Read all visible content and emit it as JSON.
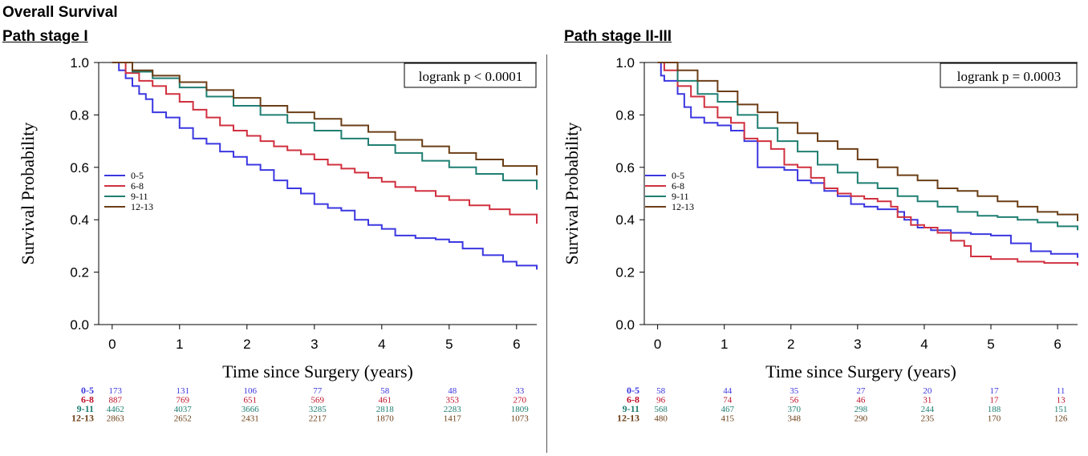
{
  "headers": {
    "main_title": "Overall Survival",
    "left_subtitle": "Path stage I",
    "right_subtitle": "Path stage II-III"
  },
  "chart_data": [
    {
      "type": "line",
      "title": "Path stage I",
      "xlabel": "Time since Surgery (years)",
      "ylabel": "Survival Probability",
      "xlim": [
        -0.2,
        6.3
      ],
      "ylim": [
        0.0,
        1.0
      ],
      "xticks": [
        "0",
        "1",
        "2",
        "3",
        "4",
        "5",
        "6"
      ],
      "yticks": [
        "0.0",
        "0.2",
        "0.4",
        "0.6",
        "0.8",
        "1.0"
      ],
      "annotation": "logrank p < 0.0001",
      "legend_position": "middle-left",
      "series": [
        {
          "name": "0-5",
          "color": "#3b37e0",
          "x": [
            0,
            0.1,
            0.2,
            0.3,
            0.4,
            0.5,
            0.6,
            0.8,
            1,
            1.2,
            1.4,
            1.6,
            1.8,
            2,
            2.2,
            2.4,
            2.6,
            2.8,
            3,
            3.2,
            3.4,
            3.6,
            3.8,
            4,
            4.2,
            4.5,
            4.8,
            5,
            5.2,
            5.5,
            5.8,
            6,
            6.3
          ],
          "y": [
            1,
            0.97,
            0.94,
            0.91,
            0.88,
            0.86,
            0.81,
            0.79,
            0.75,
            0.71,
            0.69,
            0.66,
            0.64,
            0.61,
            0.59,
            0.55,
            0.52,
            0.5,
            0.46,
            0.445,
            0.435,
            0.4,
            0.38,
            0.365,
            0.34,
            0.33,
            0.325,
            0.315,
            0.29,
            0.265,
            0.24,
            0.225,
            0.21
          ]
        },
        {
          "name": "6-8",
          "color": "#d0303f",
          "x": [
            0,
            0.2,
            0.4,
            0.6,
            0.8,
            1,
            1.2,
            1.4,
            1.6,
            1.8,
            2,
            2.2,
            2.4,
            2.6,
            2.8,
            3,
            3.2,
            3.4,
            3.6,
            3.8,
            4,
            4.2,
            4.5,
            4.8,
            5,
            5.3,
            5.6,
            5.9,
            6.3
          ],
          "y": [
            1,
            0.96,
            0.93,
            0.91,
            0.88,
            0.85,
            0.82,
            0.79,
            0.76,
            0.74,
            0.72,
            0.7,
            0.68,
            0.665,
            0.65,
            0.63,
            0.61,
            0.595,
            0.58,
            0.56,
            0.545,
            0.525,
            0.51,
            0.49,
            0.475,
            0.455,
            0.44,
            0.42,
            0.385
          ]
        },
        {
          "name": "9-11",
          "color": "#1f7f72",
          "x": [
            0,
            0.3,
            0.6,
            1,
            1.4,
            1.8,
            2.2,
            2.6,
            3,
            3.4,
            3.8,
            4.2,
            4.6,
            5,
            5.4,
            5.8,
            6.3
          ],
          "y": [
            1,
            0.965,
            0.94,
            0.905,
            0.87,
            0.835,
            0.8,
            0.77,
            0.74,
            0.71,
            0.685,
            0.655,
            0.625,
            0.6,
            0.575,
            0.55,
            0.515
          ]
        },
        {
          "name": "12-13",
          "color": "#6b3e16",
          "x": [
            0,
            0.3,
            0.6,
            1,
            1.4,
            1.8,
            2.2,
            2.6,
            3,
            3.4,
            3.8,
            4.2,
            4.6,
            5,
            5.4,
            5.8,
            6.3
          ],
          "y": [
            1,
            0.97,
            0.95,
            0.925,
            0.895,
            0.865,
            0.835,
            0.81,
            0.785,
            0.76,
            0.735,
            0.705,
            0.68,
            0.655,
            0.63,
            0.605,
            0.57
          ]
        }
      ],
      "risk_table": {
        "rows": [
          {
            "label": "0-5",
            "color": "#3b37e0",
            "values": [
              "173",
              "131",
              "106",
              "77",
              "58",
              "48",
              "33"
            ]
          },
          {
            "label": "6-8",
            "color": "#c0102a",
            "values": [
              "887",
              "769",
              "651",
              "569",
              "461",
              "353",
              "270"
            ]
          },
          {
            "label": "9-11",
            "color": "#1f7f72",
            "values": [
              "4462",
              "4037",
              "3666",
              "3285",
              "2818",
              "2283",
              "1809"
            ]
          },
          {
            "label": "12-13",
            "color": "#6b3e16",
            "values": [
              "2863",
              "2652",
              "2431",
              "2217",
              "1870",
              "1417",
              "1073"
            ]
          }
        ]
      }
    },
    {
      "type": "line",
      "title": "Path stage II-III",
      "xlabel": "Time since Surgery (years)",
      "ylabel": "Survival Probability",
      "xlim": [
        -0.2,
        6.3
      ],
      "ylim": [
        0.0,
        1.0
      ],
      "xticks": [
        "0",
        "1",
        "2",
        "3",
        "4",
        "5",
        "6"
      ],
      "yticks": [
        "0.0",
        "0.2",
        "0.4",
        "0.6",
        "0.8",
        "1.0"
      ],
      "annotation": "logrank p = 0.0003",
      "legend_position": "middle-left",
      "series": [
        {
          "name": "0-5",
          "color": "#3b37e0",
          "x": [
            0,
            0.05,
            0.1,
            0.2,
            0.3,
            0.4,
            0.5,
            0.7,
            0.9,
            1.1,
            1.3,
            1.5,
            1.7,
            1.9,
            2.1,
            2.3,
            2.5,
            2.7,
            2.9,
            3.1,
            3.3,
            3.5,
            3.6,
            3.7,
            3.9,
            4.1,
            4.4,
            4.7,
            5,
            5.3,
            5.6,
            5.9,
            6.3
          ],
          "y": [
            1,
            0.95,
            0.93,
            0.93,
            0.88,
            0.83,
            0.79,
            0.77,
            0.76,
            0.74,
            0.7,
            0.6,
            0.6,
            0.59,
            0.55,
            0.54,
            0.51,
            0.49,
            0.46,
            0.45,
            0.44,
            0.44,
            0.43,
            0.4,
            0.37,
            0.36,
            0.35,
            0.345,
            0.34,
            0.31,
            0.28,
            0.27,
            0.255
          ]
        },
        {
          "name": "6-8",
          "color": "#d0303f",
          "x": [
            0,
            0.1,
            0.3,
            0.5,
            0.7,
            0.9,
            1.1,
            1.3,
            1.5,
            1.7,
            1.9,
            2.1,
            2.3,
            2.5,
            2.7,
            2.9,
            3.1,
            3.3,
            3.5,
            3.6,
            3.8,
            4,
            4.2,
            4.4,
            4.6,
            4.7,
            5,
            5.4,
            5.8,
            6.3
          ],
          "y": [
            1,
            0.97,
            0.91,
            0.87,
            0.83,
            0.79,
            0.77,
            0.71,
            0.7,
            0.67,
            0.61,
            0.6,
            0.56,
            0.52,
            0.5,
            0.49,
            0.48,
            0.47,
            0.45,
            0.41,
            0.38,
            0.37,
            0.35,
            0.32,
            0.3,
            0.26,
            0.25,
            0.24,
            0.235,
            0.225
          ]
        },
        {
          "name": "9-11",
          "color": "#1f7f72",
          "x": [
            0,
            0.3,
            0.6,
            0.9,
            1.2,
            1.5,
            1.8,
            2.1,
            2.4,
            2.7,
            3,
            3.3,
            3.6,
            3.9,
            4.2,
            4.5,
            4.8,
            5.1,
            5.4,
            5.7,
            6,
            6.3
          ],
          "y": [
            1,
            0.93,
            0.88,
            0.85,
            0.8,
            0.75,
            0.7,
            0.66,
            0.61,
            0.58,
            0.54,
            0.52,
            0.49,
            0.47,
            0.45,
            0.43,
            0.415,
            0.41,
            0.4,
            0.39,
            0.375,
            0.36
          ]
        },
        {
          "name": "12-13",
          "color": "#6b3e16",
          "x": [
            0,
            0.3,
            0.6,
            0.9,
            1.2,
            1.5,
            1.8,
            2.1,
            2.4,
            2.7,
            3,
            3.3,
            3.6,
            3.9,
            4.2,
            4.5,
            4.8,
            5.1,
            5.4,
            5.7,
            6,
            6.3
          ],
          "y": [
            1,
            0.97,
            0.93,
            0.89,
            0.84,
            0.81,
            0.77,
            0.73,
            0.7,
            0.67,
            0.63,
            0.6,
            0.57,
            0.55,
            0.52,
            0.51,
            0.49,
            0.47,
            0.45,
            0.43,
            0.42,
            0.395
          ]
        }
      ],
      "risk_table": {
        "rows": [
          {
            "label": "0-5",
            "color": "#3b37e0",
            "values": [
              "58",
              "44",
              "35",
              "27",
              "20",
              "17",
              "11"
            ]
          },
          {
            "label": "6-8",
            "color": "#c0102a",
            "values": [
              "96",
              "74",
              "56",
              "46",
              "31",
              "17",
              "13"
            ]
          },
          {
            "label": "9-11",
            "color": "#1f7f72",
            "values": [
              "568",
              "467",
              "370",
              "298",
              "244",
              "188",
              "151"
            ]
          },
          {
            "label": "12-13",
            "color": "#6b3e16",
            "values": [
              "480",
              "415",
              "348",
              "290",
              "235",
              "170",
              "126"
            ]
          }
        ]
      }
    }
  ]
}
